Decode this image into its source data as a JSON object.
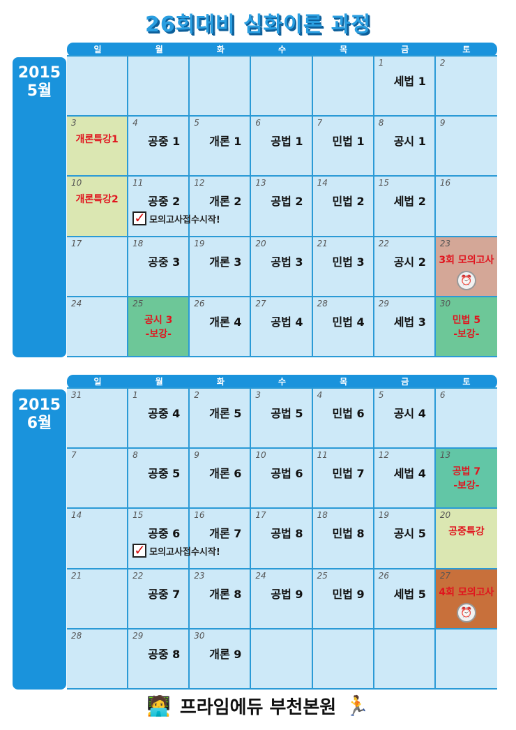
{
  "title": "26회대비 심화이론 과정",
  "weekdays": [
    "일",
    "월",
    "화",
    "수",
    "목",
    "금",
    "토"
  ],
  "colors": {
    "header": "#1a93dc",
    "cell": "#cde9f8",
    "grid_line": "#2a9ad6",
    "highlight_text": "#e0141e"
  },
  "months": [
    {
      "year": "2015",
      "month": "5월",
      "weeks": [
        [
          {},
          {},
          {},
          {},
          {},
          {
            "d": "1",
            "t": "세법 1"
          },
          {
            "d": "2"
          }
        ],
        [
          {
            "d": "3",
            "t": "개론특강1",
            "hl": "yellow",
            "red": true
          },
          {
            "d": "4",
            "t": "공중 1"
          },
          {
            "d": "5",
            "t": "개론 1"
          },
          {
            "d": "6",
            "t": "공법 1"
          },
          {
            "d": "7",
            "t": "민법 1"
          },
          {
            "d": "8",
            "t": "공시 1"
          },
          {
            "d": "9"
          }
        ],
        [
          {
            "d": "10",
            "t": "개론특강2",
            "hl": "yellow",
            "red": true
          },
          {
            "d": "11",
            "t": "공중 2",
            "note": "모의고사접수시작!"
          },
          {
            "d": "12",
            "t": "개론 2"
          },
          {
            "d": "13",
            "t": "공법 2"
          },
          {
            "d": "14",
            "t": "민법 2"
          },
          {
            "d": "15",
            "t": "세법 2"
          },
          {
            "d": "16"
          }
        ],
        [
          {
            "d": "17"
          },
          {
            "d": "18",
            "t": "공중 3"
          },
          {
            "d": "19",
            "t": "개론 3"
          },
          {
            "d": "20",
            "t": "공법 3"
          },
          {
            "d": "21",
            "t": "민법 3"
          },
          {
            "d": "22",
            "t": "공시 2"
          },
          {
            "d": "23",
            "t": "3회 모의고사",
            "hl": "salmon",
            "red": true,
            "clock": true
          }
        ],
        [
          {
            "d": "24"
          },
          {
            "d": "25",
            "t": "공시 3",
            "sub": "-보강-",
            "hl": "green",
            "red": true
          },
          {
            "d": "26",
            "t": "개론 4"
          },
          {
            "d": "27",
            "t": "공법 4"
          },
          {
            "d": "28",
            "t": "민법 4"
          },
          {
            "d": "29",
            "t": "세법 3"
          },
          {
            "d": "30",
            "t": "민법 5",
            "sub": "-보강-",
            "hl": "green",
            "red": true
          }
        ]
      ]
    },
    {
      "year": "2015",
      "month": "6월",
      "weeks": [
        [
          {
            "d": "31"
          },
          {
            "d": "1",
            "t": "공중 4"
          },
          {
            "d": "2",
            "t": "개론 5"
          },
          {
            "d": "3",
            "t": "공법 5"
          },
          {
            "d": "4",
            "t": "민법 6"
          },
          {
            "d": "5",
            "t": "공시 4"
          },
          {
            "d": "6"
          }
        ],
        [
          {
            "d": "7"
          },
          {
            "d": "8",
            "t": "공중 5"
          },
          {
            "d": "9",
            "t": "개론 6"
          },
          {
            "d": "10",
            "t": "공법 6"
          },
          {
            "d": "11",
            "t": "민법 7"
          },
          {
            "d": "12",
            "t": "세법 4"
          },
          {
            "d": "13",
            "t": "공법 7",
            "sub": "-보강-",
            "hl": "teal",
            "red": true
          }
        ],
        [
          {
            "d": "14"
          },
          {
            "d": "15",
            "t": "공중 6",
            "note": "모의고사접수시작!"
          },
          {
            "d": "16",
            "t": "개론 7"
          },
          {
            "d": "17",
            "t": "공법 8"
          },
          {
            "d": "18",
            "t": "민법 8"
          },
          {
            "d": "19",
            "t": "공시 5"
          },
          {
            "d": "20",
            "t": "공중특강",
            "hl": "yellow",
            "red": true
          }
        ],
        [
          {
            "d": "21"
          },
          {
            "d": "22",
            "t": "공중 7"
          },
          {
            "d": "23",
            "t": "개론 8"
          },
          {
            "d": "24",
            "t": "공법 9"
          },
          {
            "d": "25",
            "t": "민법 9"
          },
          {
            "d": "26",
            "t": "세법 5"
          },
          {
            "d": "27",
            "t": "4회 모의고사",
            "hl": "orange",
            "red": true,
            "clock": true
          }
        ],
        [
          {
            "d": "28"
          },
          {
            "d": "29",
            "t": "공중 8"
          },
          {
            "d": "30",
            "t": "개론 9"
          },
          {},
          {},
          {},
          {}
        ]
      ]
    }
  ],
  "footer": "프라임에듀 부천본원"
}
